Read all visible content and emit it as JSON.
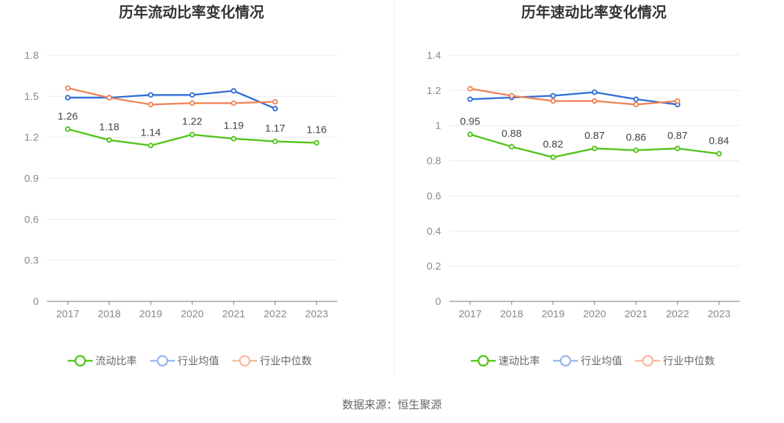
{
  "chart_data": [
    {
      "type": "line",
      "title": "历年流动比率变化情况",
      "categories": [
        "2017",
        "2018",
        "2019",
        "2020",
        "2021",
        "2022",
        "2023"
      ],
      "ylim": [
        0,
        1.8
      ],
      "yticks": [
        "0",
        "0.3",
        "0.6",
        "0.9",
        "1.2",
        "1.5",
        "1.8"
      ],
      "grid": true,
      "legend_position": "bottom",
      "series": [
        {
          "name": "流动比率",
          "color": "#52c41a",
          "values": [
            1.26,
            1.18,
            1.14,
            1.22,
            1.19,
            1.17,
            1.16
          ],
          "labels": [
            "1.26",
            "1.18",
            "1.14",
            "1.22",
            "1.19",
            "1.17",
            "1.16"
          ]
        },
        {
          "name": "行业均值",
          "color": "#3370d6",
          "values": [
            1.49,
            1.49,
            1.51,
            1.51,
            1.54,
            1.41,
            null
          ]
        },
        {
          "name": "行业中位数",
          "color": "#f0845a",
          "values": [
            1.56,
            1.49,
            1.44,
            1.45,
            1.45,
            1.46,
            null
          ]
        }
      ]
    },
    {
      "type": "line",
      "title": "历年速动比率变化情况",
      "categories": [
        "2017",
        "2018",
        "2019",
        "2020",
        "2021",
        "2022",
        "2023"
      ],
      "ylim": [
        0,
        1.4
      ],
      "yticks": [
        "0",
        "0.2",
        "0.4",
        "0.6",
        "0.8",
        "1",
        "1.2",
        "1.4"
      ],
      "grid": true,
      "legend_position": "bottom",
      "series": [
        {
          "name": "速动比率",
          "color": "#52c41a",
          "values": [
            0.95,
            0.88,
            0.82,
            0.87,
            0.86,
            0.87,
            0.84
          ],
          "labels": [
            "0.95",
            "0.88",
            "0.82",
            "0.87",
            "0.86",
            "0.87",
            "0.84"
          ]
        },
        {
          "name": "行业均值",
          "color": "#3370d6",
          "values": [
            1.15,
            1.16,
            1.17,
            1.19,
            1.15,
            1.12,
            null
          ]
        },
        {
          "name": "行业中位数",
          "color": "#f0845a",
          "values": [
            1.21,
            1.17,
            1.14,
            1.14,
            1.12,
            1.14,
            null
          ]
        }
      ]
    }
  ],
  "legend_colors": {
    "active": "#52c41a",
    "avg_faded": "#9ab8ee",
    "median_faded": "#f7b9a1"
  },
  "footer": {
    "source": "数据来源：恒生聚源"
  }
}
